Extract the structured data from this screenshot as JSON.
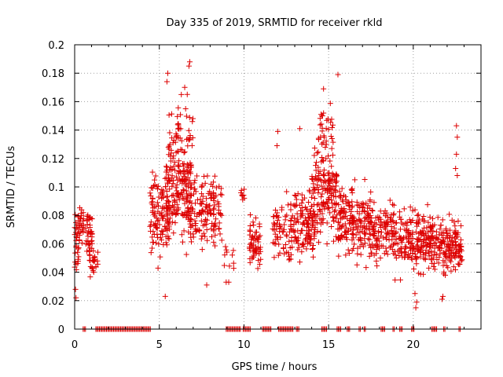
{
  "chart_data": {
    "type": "scatter",
    "title": "Day 335 of 2019, SRMTID for receiver rkld",
    "xlabel": "GPS time / hours",
    "ylabel": "SRMTID / TECUs",
    "xlim": [
      0,
      24
    ],
    "ylim": [
      0,
      0.2
    ],
    "x_ticks": [
      0,
      5,
      10,
      15,
      20
    ],
    "x_tick_labels": [
      "0",
      "5",
      "10",
      "15",
      "20"
    ],
    "y_ticks": [
      0,
      0.02,
      0.04,
      0.06,
      0.08,
      0.1,
      0.12,
      0.14,
      0.16,
      0.18,
      0.2
    ],
    "y_tick_labels": [
      "0",
      "0.02",
      "0.04",
      "0.06",
      "0.08",
      "0.1",
      "0.12",
      "0.14",
      "0.16",
      "0.18",
      "0.2"
    ],
    "grid": true,
    "marker": "+",
    "color": "#dd0000",
    "series_note": "SRMTID samples per satellite pass; zero-valued samples drawn on x-axis",
    "segments": [
      {
        "x_start": 0.0,
        "x_end": 0.25,
        "y_center": 0.06,
        "y_spread": 0.035,
        "n": 30,
        "seed": 1
      },
      {
        "x_start": 0.25,
        "x_end": 0.55,
        "y_center": 0.075,
        "y_spread": 0.02,
        "n": 25,
        "seed": 2
      },
      {
        "x_start": 0.65,
        "x_end": 1.05,
        "y_center": 0.07,
        "y_spread": 0.02,
        "n": 35,
        "seed": 3
      },
      {
        "x_start": 0.85,
        "x_end": 1.4,
        "y_center": 0.048,
        "y_spread": 0.015,
        "n": 30,
        "seed": 4
      },
      {
        "x_start": 4.45,
        "x_end": 5.6,
        "y_center": 0.08,
        "y_spread": 0.04,
        "n": 120,
        "seed": 5
      },
      {
        "x_start": 5.4,
        "x_end": 6.9,
        "y_center": 0.1,
        "y_spread": 0.045,
        "n": 170,
        "seed": 6
      },
      {
        "x_start": 5.5,
        "x_end": 7.0,
        "y_center": 0.14,
        "y_spread": 0.03,
        "n": 45,
        "seed": 7
      },
      {
        "x_start": 6.6,
        "x_end": 8.7,
        "y_center": 0.082,
        "y_spread": 0.035,
        "n": 160,
        "seed": 8
      },
      {
        "x_start": 8.7,
        "x_end": 9.4,
        "y_center": 0.05,
        "y_spread": 0.015,
        "n": 10,
        "seed": 9
      },
      {
        "x_start": 9.8,
        "x_end": 10.1,
        "y_center": 0.095,
        "y_spread": 0.008,
        "n": 8,
        "seed": 10
      },
      {
        "x_start": 10.3,
        "x_end": 11.0,
        "y_center": 0.06,
        "y_spread": 0.025,
        "n": 60,
        "seed": 11
      },
      {
        "x_start": 11.7,
        "x_end": 13.0,
        "y_center": 0.07,
        "y_spread": 0.035,
        "n": 80,
        "seed": 12
      },
      {
        "x_start": 13.0,
        "x_end": 14.2,
        "y_center": 0.075,
        "y_spread": 0.035,
        "n": 110,
        "seed": 13
      },
      {
        "x_start": 14.0,
        "x_end": 15.5,
        "y_center": 0.095,
        "y_spread": 0.045,
        "n": 170,
        "seed": 14
      },
      {
        "x_start": 14.4,
        "x_end": 15.3,
        "y_center": 0.14,
        "y_spread": 0.025,
        "n": 30,
        "seed": 15
      },
      {
        "x_start": 15.5,
        "x_end": 17.5,
        "y_center": 0.075,
        "y_spread": 0.035,
        "n": 180,
        "seed": 16
      },
      {
        "x_start": 17.4,
        "x_end": 18.9,
        "y_center": 0.07,
        "y_spread": 0.03,
        "n": 120,
        "seed": 17
      },
      {
        "x_start": 18.9,
        "x_end": 20.3,
        "y_center": 0.06,
        "y_spread": 0.03,
        "n": 110,
        "seed": 18
      },
      {
        "x_start": 20.2,
        "x_end": 21.8,
        "y_center": 0.062,
        "y_spread": 0.03,
        "n": 150,
        "seed": 19
      },
      {
        "x_start": 21.8,
        "x_end": 22.9,
        "y_center": 0.058,
        "y_spread": 0.025,
        "n": 110,
        "seed": 20
      }
    ],
    "extra_points": [
      {
        "x": 6.8,
        "y": 0.188
      },
      {
        "x": 6.75,
        "y": 0.185
      },
      {
        "x": 5.5,
        "y": 0.18
      },
      {
        "x": 15.55,
        "y": 0.179
      },
      {
        "x": 14.7,
        "y": 0.169
      },
      {
        "x": 6.5,
        "y": 0.17
      },
      {
        "x": 5.45,
        "y": 0.174
      },
      {
        "x": 6.3,
        "y": 0.165
      },
      {
        "x": 22.55,
        "y": 0.143
      },
      {
        "x": 22.6,
        "y": 0.135
      },
      {
        "x": 22.55,
        "y": 0.123
      },
      {
        "x": 22.5,
        "y": 0.113
      },
      {
        "x": 22.6,
        "y": 0.108
      },
      {
        "x": 5.35,
        "y": 0.023
      },
      {
        "x": 0.05,
        "y": 0.028
      },
      {
        "x": 0.08,
        "y": 0.022
      },
      {
        "x": 20.1,
        "y": 0.025
      },
      {
        "x": 20.15,
        "y": 0.015
      },
      {
        "x": 20.2,
        "y": 0.019
      },
      {
        "x": 21.7,
        "y": 0.021
      },
      {
        "x": 21.75,
        "y": 0.023
      },
      {
        "x": 12.0,
        "y": 0.139
      },
      {
        "x": 13.3,
        "y": 0.141
      },
      {
        "x": 11.95,
        "y": 0.129
      },
      {
        "x": 8.95,
        "y": 0.033
      },
      {
        "x": 9.1,
        "y": 0.033
      },
      {
        "x": 7.8,
        "y": 0.031
      }
    ],
    "zero_intervals": [
      [
        0.5,
        0.65
      ],
      [
        1.25,
        4.5
      ],
      [
        8.95,
        9.8
      ],
      [
        9.95,
        10.4
      ],
      [
        11.1,
        11.65
      ],
      [
        12.05,
        12.9
      ],
      [
        13.1,
        13.3
      ],
      [
        14.6,
        14.9
      ],
      [
        15.5,
        15.75
      ],
      [
        16.1,
        16.3
      ],
      [
        16.8,
        16.9
      ],
      [
        17.1,
        17.2
      ],
      [
        18.1,
        18.35
      ],
      [
        18.8,
        18.9
      ],
      [
        19.2,
        19.35
      ],
      [
        19.9,
        20.1
      ],
      [
        21.1,
        21.4
      ],
      [
        21.8,
        21.9
      ],
      [
        22.7,
        22.8
      ]
    ]
  }
}
